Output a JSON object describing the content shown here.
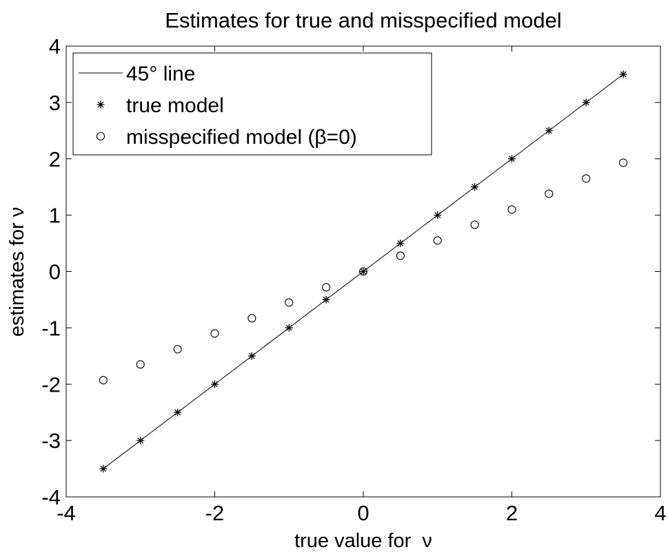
{
  "chart_data": {
    "type": "scatter",
    "title": "Estimates for true and misspecified model",
    "xlabel": "true value for  ν",
    "ylabel": "estimates for ν",
    "xlim": [
      -4,
      4
    ],
    "ylim": [
      -4,
      4
    ],
    "xticks": [
      "-4",
      "-2",
      "0",
      "2",
      "4"
    ],
    "yticks": [
      "-4",
      "-3",
      "-2",
      "-1",
      "0",
      "1",
      "2",
      "3",
      "4"
    ],
    "grid": false,
    "legend_position": "top-left",
    "series": [
      {
        "name": "45° line",
        "kind": "line",
        "x": [
          -3.5,
          3.5
        ],
        "y": [
          -3.5,
          3.5
        ]
      },
      {
        "name": "true model",
        "kind": "marker-star",
        "x": [
          -3.5,
          -3,
          -2.5,
          -2,
          -1.5,
          -1,
          -0.5,
          0,
          0.5,
          1,
          1.5,
          2,
          2.5,
          3,
          3.5
        ],
        "y": [
          -3.5,
          -3,
          -2.5,
          -2,
          -1.5,
          -1,
          -0.5,
          0,
          0.5,
          1,
          1.5,
          2,
          2.5,
          3,
          3.5
        ]
      },
      {
        "name": "misspecified model (β=0)",
        "kind": "marker-circle",
        "x": [
          -3.5,
          -3,
          -2.5,
          -2,
          -1.5,
          -1,
          -0.5,
          0,
          0.5,
          1,
          1.5,
          2,
          2.5,
          3,
          3.5
        ],
        "y": [
          -1.93,
          -1.65,
          -1.38,
          -1.1,
          -0.83,
          -0.55,
          -0.28,
          0,
          0.28,
          0.55,
          0.83,
          1.1,
          1.38,
          1.65,
          1.93
        ]
      }
    ]
  }
}
